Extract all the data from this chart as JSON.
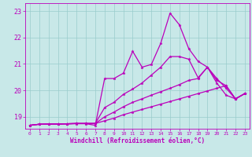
{
  "xlabel": "Windchill (Refroidissement éolien,°C)",
  "xlim": [
    -0.5,
    23.5
  ],
  "ylim": [
    18.55,
    23.3
  ],
  "yticks": [
    19,
    20,
    21,
    22,
    23
  ],
  "xticks": [
    0,
    1,
    2,
    3,
    4,
    5,
    6,
    7,
    8,
    9,
    10,
    11,
    12,
    13,
    14,
    15,
    16,
    17,
    18,
    19,
    20,
    21,
    22,
    23
  ],
  "bg_color": "#c8e8e8",
  "line_color": "#bb00bb",
  "grid_color": "#99cccc",
  "lines": [
    [
      18.68,
      18.72,
      18.72,
      18.72,
      18.73,
      18.74,
      18.74,
      18.68,
      20.45,
      20.45,
      20.65,
      21.48,
      20.88,
      20.98,
      21.78,
      22.92,
      22.48,
      21.58,
      21.1,
      20.88,
      20.28,
      19.82,
      19.68,
      19.88
    ],
    [
      18.68,
      18.72,
      18.73,
      18.73,
      18.74,
      18.75,
      18.75,
      18.75,
      19.35,
      19.55,
      19.85,
      20.05,
      20.28,
      20.58,
      20.88,
      21.28,
      21.28,
      21.18,
      20.48,
      20.88,
      20.38,
      20.18,
      19.68,
      19.88
    ],
    [
      18.68,
      18.72,
      18.73,
      18.73,
      18.74,
      18.75,
      18.75,
      18.75,
      19.0,
      19.18,
      19.38,
      19.55,
      19.68,
      19.82,
      19.95,
      20.08,
      20.22,
      20.38,
      20.45,
      20.88,
      20.45,
      20.08,
      19.68,
      19.88
    ],
    [
      18.68,
      18.72,
      18.73,
      18.73,
      18.74,
      18.75,
      18.75,
      18.75,
      18.85,
      18.95,
      19.08,
      19.18,
      19.28,
      19.38,
      19.48,
      19.58,
      19.68,
      19.78,
      19.88,
      19.98,
      20.08,
      20.18,
      19.68,
      19.88
    ]
  ]
}
